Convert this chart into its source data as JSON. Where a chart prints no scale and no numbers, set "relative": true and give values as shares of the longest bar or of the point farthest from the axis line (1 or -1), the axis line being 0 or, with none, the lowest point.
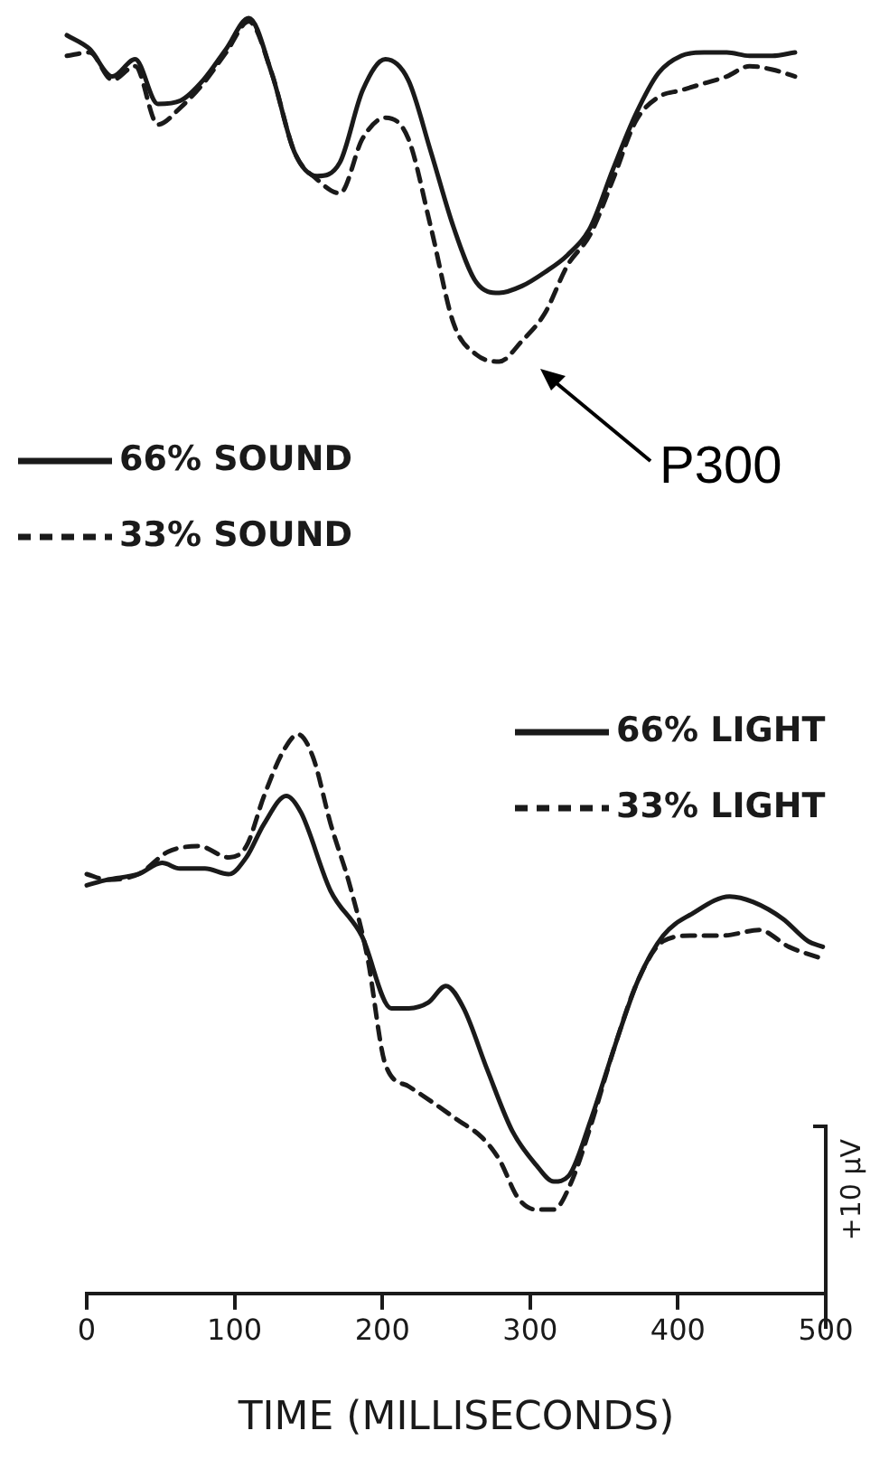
{
  "chart_data": [
    {
      "type": "line",
      "relative": true,
      "tick_labels": false,
      "legend": "bottom left",
      "annotations": [
        "P300"
      ],
      "categories": [
        null,
        null,
        null,
        null,
        null,
        null,
        null,
        null,
        null,
        null,
        null,
        null,
        null,
        null,
        null,
        null,
        null,
        null,
        null,
        null,
        null,
        null,
        null,
        null,
        null,
        null,
        null,
        null,
        null,
        null,
        null,
        null,
        null
      ],
      "series": [
        {
          "name": "66% SOUND",
          "color": "#1a1a1a",
          "line_style": "solid",
          "values": [
            0.95,
            0.91,
            0.83,
            0.88,
            0.75,
            0.76,
            0.82,
            0.91,
            1,
            0.84,
            0.61,
            0.54,
            0.58,
            0.79,
            0.88,
            0.82,
            0.61,
            0.39,
            0.23,
            0.2,
            0.22,
            0.26,
            0.31,
            0.39,
            0.56,
            0.72,
            0.84,
            0.89,
            0.9,
            0.9,
            0.89,
            0.89,
            0.9
          ]
        },
        {
          "name": "33% SOUND",
          "color": "#1a1a1a",
          "line_style": "dashed",
          "values": [
            0.89,
            0.9,
            0.82,
            0.86,
            0.69,
            0.74,
            0.81,
            0.9,
            0.99,
            0.84,
            0.61,
            0.53,
            0.49,
            0.65,
            0.71,
            0.65,
            0.39,
            0.11,
            0.02,
            0,
            0.06,
            0.14,
            0.28,
            0.37,
            0.53,
            0.7,
            0.77,
            0.79,
            0.81,
            0.83,
            0.86,
            0.85,
            0.83
          ]
        }
      ]
    },
    {
      "type": "line",
      "relative": true,
      "tick_labels": "x",
      "legend": "top right",
      "xlabel": "TIME (MILLISECONDS)",
      "xlim": [
        0,
        500
      ],
      "xticks": [
        0,
        100,
        200,
        300,
        400,
        500
      ],
      "annotations": [
        "+10 µV"
      ],
      "series": [
        {
          "name": "66% LIGHT",
          "color": "#1a1a1a",
          "line_style": "solid",
          "x": [
            0,
            14,
            35,
            51,
            63,
            80,
            96,
            108,
            120,
            135,
            145,
            165,
            186,
            206,
            218,
            231,
            243,
            255,
            271,
            288,
            304,
            316,
            326,
            341,
            357,
            373,
            390,
            410,
            435,
            451,
            471,
            488,
            498
          ],
          "values": [
            0.73,
            0.74,
            0.75,
            0.77,
            0.76,
            0.76,
            0.75,
            0.78,
            0.84,
            0.89,
            0.86,
            0.72,
            0.64,
            0.51,
            0.51,
            0.52,
            0.55,
            0.51,
            0.4,
            0.29,
            0.23,
            0.2,
            0.21,
            0.31,
            0.44,
            0.56,
            0.64,
            0.68,
            0.71,
            0.7,
            0.67,
            0.63,
            0.62
          ]
        },
        {
          "name": "33% LIGHT",
          "color": "#1a1a1a",
          "line_style": "dashed",
          "x": [
            0,
            14,
            35,
            55,
            76,
            96,
            108,
            120,
            133,
            143,
            153,
            165,
            178,
            190,
            202,
            218,
            235,
            251,
            267,
            279,
            292,
            304,
            316,
            328,
            341,
            357,
            373,
            390,
            410,
            430,
            455,
            475,
            496
          ],
          "values": [
            0.75,
            0.74,
            0.75,
            0.79,
            0.8,
            0.78,
            0.8,
            0.89,
            0.97,
            1,
            0.96,
            0.84,
            0.73,
            0.6,
            0.41,
            0.37,
            0.34,
            0.31,
            0.28,
            0.24,
            0.17,
            0.15,
            0.15,
            0.2,
            0.3,
            0.44,
            0.56,
            0.63,
            0.64,
            0.64,
            0.65,
            0.62,
            0.6
          ]
        }
      ]
    }
  ]
}
